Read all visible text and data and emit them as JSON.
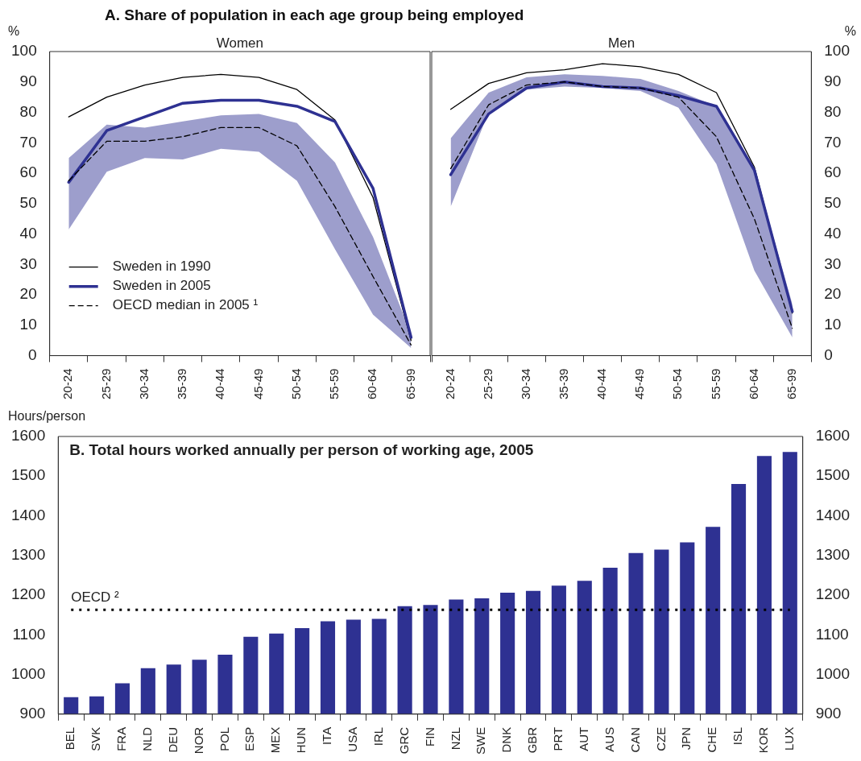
{
  "chart_data": [
    {
      "type": "line",
      "title": "A. Share of population in each age group being employed",
      "subtitle": "Women",
      "ylabel": "%",
      "categories": [
        "20-24",
        "25-29",
        "30-34",
        "35-39",
        "40-44",
        "45-49",
        "50-54",
        "55-59",
        "60-64",
        "65-99"
      ],
      "ylim": [
        0,
        100
      ],
      "yticks": [
        0,
        10,
        20,
        30,
        40,
        50,
        60,
        70,
        80,
        90,
        100
      ],
      "grid": false,
      "legend": "bottom left",
      "marker": "none",
      "series": [
        {
          "name": "Sweden in 1990",
          "color": "#000000",
          "line_style": "solid",
          "values": [
            78.5,
            85,
            89,
            91.5,
            92.5,
            91.5,
            87.5,
            77.5,
            52,
            5
          ]
        },
        {
          "name": "Sweden in 2005",
          "color": "#2e3192",
          "line_style": "solid",
          "values": [
            57,
            74,
            78.5,
            83,
            84,
            84,
            82,
            77,
            55,
            6
          ]
        },
        {
          "name": "OECD median in 2005 ¹",
          "color": "#000000",
          "line_style": "dashed",
          "values": [
            57.5,
            70.5,
            70.5,
            72,
            75,
            75,
            69,
            49,
            26,
            3.5
          ],
          "lower": [
            41.5,
            60.5,
            65,
            64.5,
            68,
            67,
            57.5,
            35,
            13.5,
            2.5
          ],
          "upper": [
            65,
            76,
            75,
            77,
            79,
            79.5,
            76.5,
            63.5,
            39,
            7
          ]
        }
      ]
    },
    {
      "type": "line",
      "subtitle": "Men",
      "ylabel": "%",
      "categories": [
        "20-24",
        "25-29",
        "30-34",
        "35-39",
        "40-44",
        "45-49",
        "50-54",
        "55-59",
        "60-64",
        "65-99"
      ],
      "ylim": [
        0,
        100
      ],
      "yticks": [
        0,
        10,
        20,
        30,
        40,
        50,
        60,
        70,
        80,
        90,
        100
      ],
      "grid": false,
      "legend": false,
      "marker": "none",
      "series": [
        {
          "color": "#000000",
          "line_style": "solid",
          "values": [
            81,
            89.5,
            93,
            94,
            96,
            95,
            92.5,
            86.5,
            62,
            14
          ]
        },
        {
          "color": "#2e3192",
          "line_style": "solid",
          "values": [
            59.5,
            79.5,
            88,
            90,
            88.5,
            88,
            85.5,
            82,
            61,
            14.5
          ]
        },
        {
          "color": "#000000",
          "line_style": "dashed",
          "values": [
            61.5,
            82.5,
            89,
            90,
            88.5,
            88,
            85,
            72,
            45,
            9
          ],
          "lower": [
            49,
            80,
            87.5,
            88.5,
            88,
            87,
            81.5,
            63,
            28,
            6
          ],
          "upper": [
            71.5,
            86.5,
            91.5,
            92.5,
            92,
            91,
            87,
            82,
            61,
            17
          ]
        }
      ]
    },
    {
      "type": "bar",
      "title": "B. Total hours worked annually per person of working age, 2005",
      "ylabel": "Hours/person",
      "categories": [
        "BEL",
        "SVK",
        "FRA",
        "NLD",
        "DEU",
        "NOR",
        "POL",
        "ESP",
        "MEX",
        "HUN",
        "ITA",
        "USA",
        "IRL",
        "GRC",
        "FIN",
        "NZL",
        "SWE",
        "DNK",
        "GBR",
        "PRT",
        "AUT",
        "AUS",
        "CAN",
        "CZE",
        "JPN",
        "CHE",
        "ISL",
        "KOR",
        "LUX"
      ],
      "values": [
        943,
        945,
        978,
        1016,
        1025,
        1037,
        1050,
        1095,
        1103,
        1117,
        1134,
        1138,
        1140,
        1172,
        1175,
        1189,
        1192,
        1206,
        1211,
        1224,
        1236,
        1269,
        1306,
        1315,
        1333,
        1372,
        1480,
        1551,
        1561
      ],
      "color": "#2e3192",
      "ylim": [
        900,
        1600
      ],
      "yticks": [
        900,
        1000,
        1100,
        1200,
        1300,
        1400,
        1500,
        1600
      ],
      "y2lim": [
        900,
        1600
      ],
      "y2ticks": [
        900,
        1000,
        1100,
        1200,
        1300,
        1400,
        1500,
        1600
      ],
      "grid": false,
      "legend": false,
      "ref_lines": [
        {
          "axis": "y",
          "value": 1163,
          "label": "OECD ²",
          "color": "#000000",
          "line_style": "dotted"
        }
      ]
    }
  ]
}
